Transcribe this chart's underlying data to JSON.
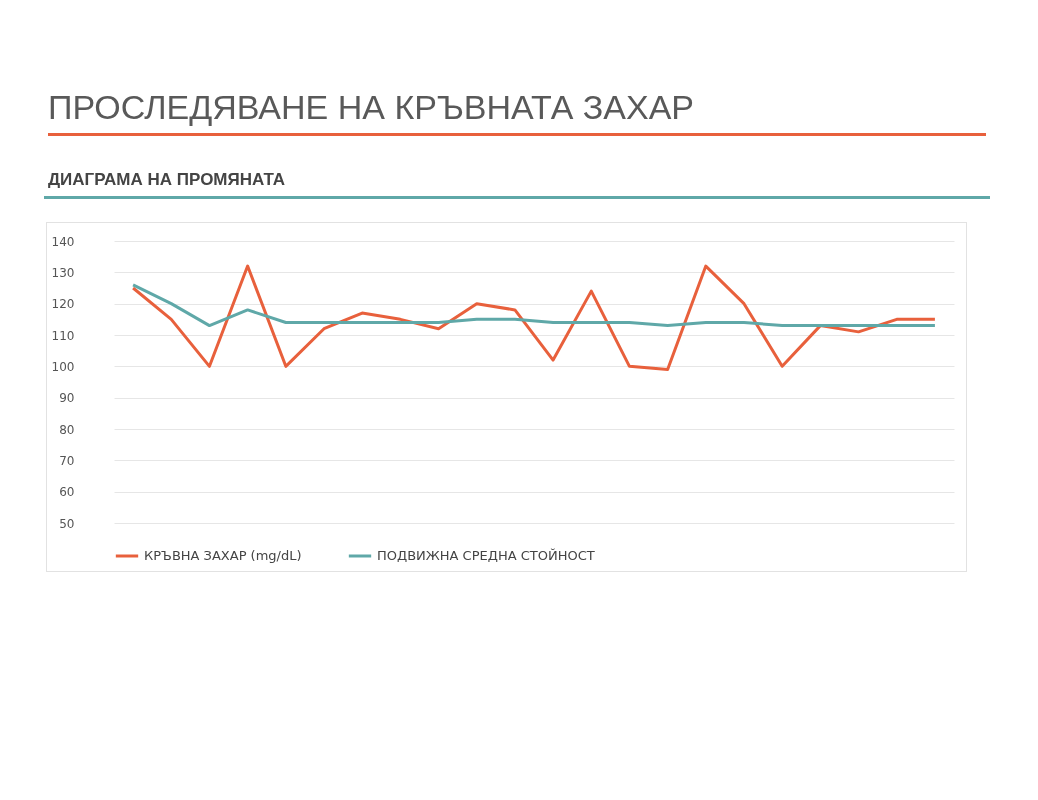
{
  "chart_data": {
    "type": "line",
    "title": "ПРОСЛЕДЯВАНЕ НА КРЪВНАТА ЗАХАР",
    "subtitle": "ДИАГРАМА НА ПРОМЯНАТА",
    "categories": [
      null,
      null,
      null,
      null,
      null,
      null,
      null,
      null,
      null,
      null,
      null,
      null,
      null,
      null,
      null,
      null,
      null,
      null,
      null,
      null,
      null,
      null
    ],
    "series": [
      {
        "name": "КРЪВНА ЗАХАР (mg/dL)",
        "color": "#e8603c",
        "values": [
          125,
          115,
          100,
          132,
          100,
          112,
          117,
          115,
          112,
          120,
          118,
          102,
          124,
          100,
          99,
          132,
          120,
          100,
          113,
          111,
          115,
          115
        ]
      },
      {
        "name": "ПОДВИЖНА СРЕДНА СТОЙНОСТ",
        "color": "#5fa8a8",
        "values": [
          126,
          120,
          113,
          118,
          114,
          114,
          114,
          114,
          114,
          115,
          115,
          114,
          114,
          114,
          113,
          114,
          114,
          113,
          113,
          113,
          113,
          113
        ]
      }
    ],
    "ylim": [
      50,
      140
    ],
    "yticks": [
      50,
      60,
      70,
      80,
      90,
      100,
      110,
      120,
      130,
      140
    ],
    "grid": "y",
    "legend": "bottom",
    "tick_labels": "y"
  }
}
